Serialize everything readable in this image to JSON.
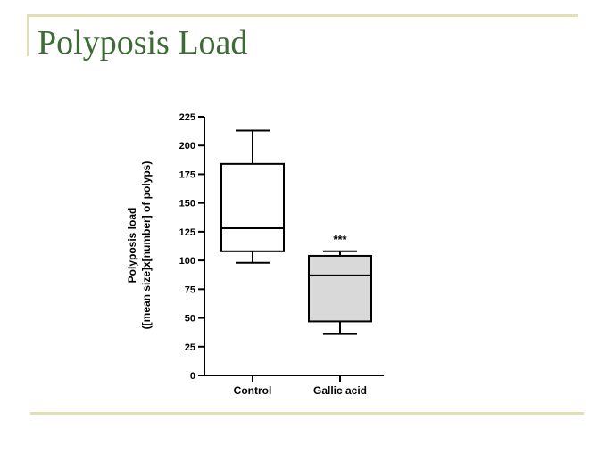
{
  "slide": {
    "title": "Polyposis Load",
    "accent_color": "#3d6b35",
    "rule_color": "#e3dfb3"
  },
  "chart_data": {
    "type": "box",
    "title": "",
    "xlabel": "",
    "ylabel_line1": "Polyposis load",
    "ylabel_line2": "([mean size]x[number] of polyps)",
    "ylim": [
      0,
      225
    ],
    "yticks": [
      0,
      25,
      50,
      75,
      100,
      125,
      150,
      175,
      200,
      225
    ],
    "grid": false,
    "categories": [
      "Control",
      "Gallic acid"
    ],
    "boxes": [
      {
        "label": "Control",
        "min": 98,
        "q1": 108,
        "median": 128,
        "q3": 184,
        "max": 213,
        "fill": "#ffffff"
      },
      {
        "label": "Gallic acid",
        "min": 36,
        "q1": 47,
        "median": 87,
        "q3": 104,
        "max": 108,
        "fill": "#d9d9d9"
      }
    ],
    "annotations": [
      {
        "category": "Gallic acid",
        "text": "***"
      }
    ]
  }
}
